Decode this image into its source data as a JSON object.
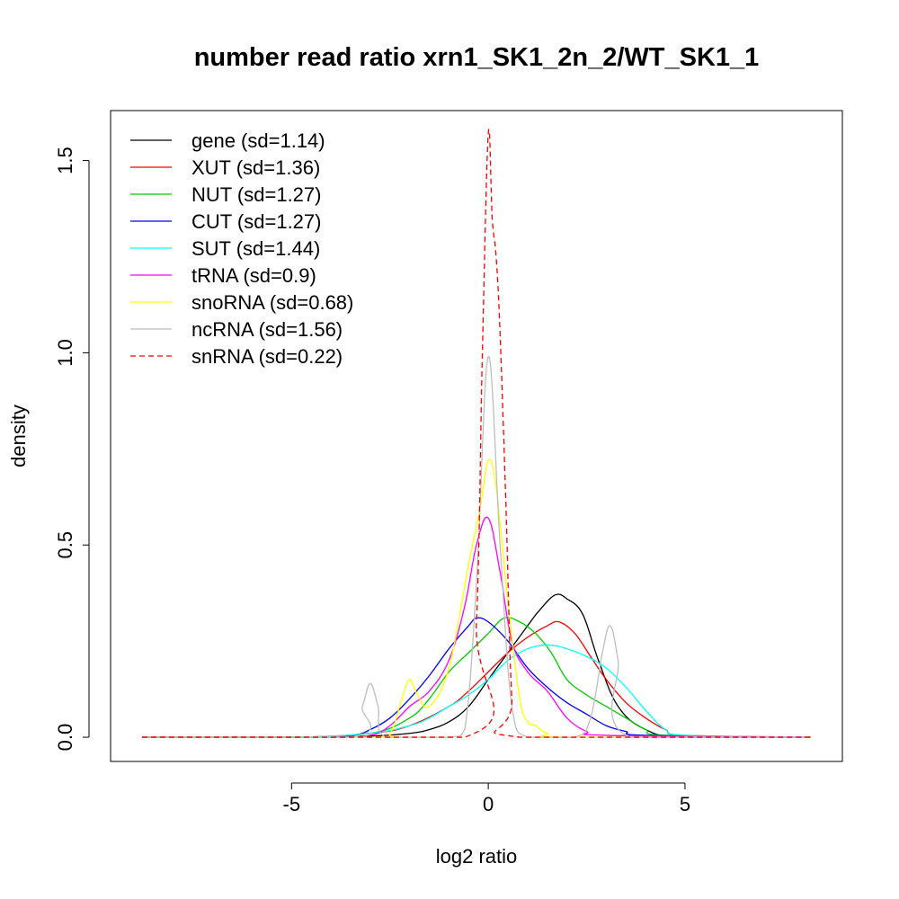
{
  "chart_data": {
    "type": "line",
    "title": "number read ratio xrn1_SK1_2n_2/WT_SK1_1",
    "xlabel": "log2 ratio",
    "ylabel": "density",
    "xlim": [
      -9.6,
      9.0
    ],
    "ylim": [
      -0.063,
      1.63
    ],
    "x_ticks": [
      -5,
      0,
      5
    ],
    "x_tick_labels": [
      "-5",
      "0",
      "5"
    ],
    "y_ticks": [
      0.0,
      0.5,
      1.0,
      1.5
    ],
    "y_tick_labels": [
      "0.0",
      "0.5",
      "1.0",
      "1.5"
    ],
    "grid": false,
    "legend_position": "top-left",
    "series": [
      {
        "name": "gene (sd=1.14)",
        "color": "#000000",
        "dash": "solid",
        "x": [
          -8.8,
          -5,
          -3,
          -2,
          -1.5,
          -1,
          -0.5,
          0,
          0.5,
          1,
          1.3,
          1.7,
          2,
          2.4,
          2.8,
          3.3,
          4,
          5,
          8.2
        ],
        "y": [
          0,
          0,
          0.003,
          0.01,
          0.02,
          0.04,
          0.08,
          0.15,
          0.22,
          0.29,
          0.33,
          0.37,
          0.36,
          0.32,
          0.2,
          0.08,
          0.02,
          0,
          0
        ]
      },
      {
        "name": "XUT (sd=1.36)",
        "color": "#ff0000",
        "dash": "solid",
        "x": [
          -8.8,
          -5,
          -3,
          -2,
          -1,
          -0.5,
          0,
          0.5,
          1,
          1.5,
          1.8,
          2.2,
          2.6,
          3,
          3.5,
          4,
          4.5,
          5,
          8.2
        ],
        "y": [
          0,
          0,
          0.01,
          0.03,
          0.08,
          0.12,
          0.17,
          0.22,
          0.26,
          0.29,
          0.3,
          0.27,
          0.21,
          0.15,
          0.09,
          0.05,
          0.02,
          0.005,
          0
        ]
      },
      {
        "name": "NUT (sd=1.27)",
        "color": "#00cd00",
        "dash": "solid",
        "x": [
          -8.8,
          -5,
          -3,
          -2,
          -1.5,
          -1,
          -0.5,
          0,
          0.4,
          0.8,
          1.2,
          1.6,
          2,
          2.5,
          3,
          3.5,
          4,
          4.5,
          8.2
        ],
        "y": [
          0,
          0,
          0.01,
          0.05,
          0.1,
          0.17,
          0.22,
          0.27,
          0.31,
          0.3,
          0.27,
          0.22,
          0.15,
          0.11,
          0.08,
          0.05,
          0.02,
          0.005,
          0
        ]
      },
      {
        "name": "CUT (sd=1.27)",
        "color": "#0000ff",
        "dash": "solid",
        "x": [
          -8.8,
          -5,
          -3.5,
          -3,
          -2.5,
          -2,
          -1.5,
          -1,
          -0.5,
          -0.3,
          0,
          0.5,
          1,
          1.5,
          2,
          2.5,
          3,
          3.5,
          4,
          8.2
        ],
        "y": [
          0,
          0,
          0.005,
          0.02,
          0.05,
          0.1,
          0.16,
          0.23,
          0.29,
          0.31,
          0.3,
          0.25,
          0.18,
          0.13,
          0.09,
          0.06,
          0.03,
          0.015,
          0.005,
          0
        ]
      },
      {
        "name": "SUT (sd=1.44)",
        "color": "#00ffff",
        "dash": "solid",
        "x": [
          -8.8,
          -5,
          -3,
          -2,
          -1.5,
          -1,
          -0.5,
          0,
          0.5,
          1,
          1.5,
          2,
          2.5,
          3,
          3.5,
          4,
          4.5,
          5,
          8.2
        ],
        "y": [
          0,
          0,
          0.01,
          0.03,
          0.05,
          0.08,
          0.11,
          0.15,
          0.2,
          0.23,
          0.24,
          0.23,
          0.21,
          0.18,
          0.13,
          0.07,
          0.02,
          0.005,
          0
        ]
      },
      {
        "name": "tRNA (sd=0.9)",
        "color": "#ff00ff",
        "dash": "solid",
        "x": [
          -8.8,
          -4,
          -3,
          -2.5,
          -2,
          -1.5,
          -1,
          -0.6,
          -0.3,
          0,
          0.3,
          0.6,
          1,
          1.5,
          2,
          2.5,
          3,
          8.2
        ],
        "y": [
          0,
          0,
          0.005,
          0.03,
          0.08,
          0.12,
          0.2,
          0.34,
          0.5,
          0.57,
          0.43,
          0.25,
          0.17,
          0.12,
          0.05,
          0.015,
          0.005,
          0
        ]
      },
      {
        "name": "snoRNA (sd=0.68)",
        "color": "#ffff00",
        "dash": "solid",
        "x": [
          -8.8,
          -3,
          -2.5,
          -2.2,
          -2,
          -1.8,
          -1.5,
          -1,
          -0.5,
          -0.2,
          0,
          0.2,
          0.5,
          0.8,
          1,
          1.2,
          1.5,
          2,
          8.2
        ],
        "y": [
          0,
          0,
          0.01,
          0.1,
          0.15,
          0.11,
          0.08,
          0.18,
          0.45,
          0.6,
          0.72,
          0.65,
          0.35,
          0.1,
          0.04,
          0.03,
          0.01,
          0,
          0
        ]
      },
      {
        "name": "ncRNA (sd=1.56)",
        "color": "#bebebe",
        "dash": "solid",
        "x": [
          -8.8,
          -3.5,
          -3.2,
          -3,
          -2.8,
          -2.6,
          -1,
          -0.6,
          -0.3,
          0,
          0.3,
          0.6,
          1,
          2.2,
          2.6,
          2.9,
          3.1,
          3.3,
          3.6,
          8.2
        ],
        "y": [
          0,
          0,
          0.08,
          0.14,
          0.08,
          0,
          0,
          0.02,
          0.4,
          0.99,
          0.5,
          0.08,
          0,
          0,
          0.05,
          0.22,
          0.29,
          0.2,
          0,
          0
        ]
      },
      {
        "name": "snRNA (sd=0.22)",
        "color": "#ff0000",
        "dash": "dashed",
        "x": [
          -8.8,
          -0.6,
          -0.3,
          -0.15,
          0,
          0.1,
          0.2,
          0.3,
          0.45,
          0.6,
          0.8,
          8.2
        ],
        "y": [
          0,
          0,
          0.3,
          1.0,
          1.57,
          1.35,
          1.25,
          1.05,
          0.6,
          0.1,
          0,
          0
        ]
      }
    ]
  }
}
